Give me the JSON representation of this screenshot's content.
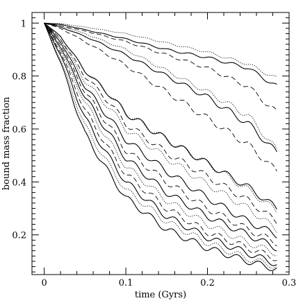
{
  "chart_data": {
    "type": "line",
    "title": "",
    "xlabel": "time (Gyrs)",
    "ylabel": "bound mass fraction",
    "xlim": [
      -0.015,
      0.3
    ],
    "ylim": [
      0.05,
      1.04
    ],
    "xticks": [
      0,
      0.1,
      0.2,
      0.3
    ],
    "xtick_labels": [
      "0",
      "0.1",
      "0.2",
      "0.3"
    ],
    "yticks": [
      0.2,
      0.4,
      0.6,
      0.8,
      1
    ],
    "ytick_labels": [
      "0.2",
      "0.4",
      "0.6",
      "0.8",
      "1"
    ],
    "grid": false,
    "legend": "none",
    "series": [
      {
        "style": "solid",
        "x": [
          0,
          0.02,
          0.05,
          0.1,
          0.15,
          0.2,
          0.25,
          0.285
        ],
        "y": [
          1,
          0.995,
          0.975,
          0.94,
          0.9,
          0.87,
          0.83,
          0.76
        ]
      },
      {
        "style": "dotted",
        "x": [
          0,
          0.02,
          0.05,
          0.1,
          0.15,
          0.2,
          0.25,
          0.285
        ],
        "y": [
          1,
          0.998,
          0.985,
          0.96,
          0.925,
          0.89,
          0.845,
          0.79
        ]
      },
      {
        "style": "dashed",
        "x": [
          0,
          0.02,
          0.05,
          0.1,
          0.15,
          0.2,
          0.25,
          0.285
        ],
        "y": [
          1,
          0.99,
          0.97,
          0.93,
          0.88,
          0.83,
          0.76,
          0.66
        ]
      },
      {
        "style": "dotted",
        "x": [
          0,
          0.02,
          0.05,
          0.1,
          0.15,
          0.2,
          0.25,
          0.285
        ],
        "y": [
          1,
          0.99,
          0.96,
          0.9,
          0.82,
          0.74,
          0.65,
          0.52
        ]
      },
      {
        "style": "solid",
        "x": [
          0,
          0.02,
          0.05,
          0.1,
          0.15,
          0.2,
          0.25,
          0.285
        ],
        "y": [
          1,
          0.985,
          0.95,
          0.88,
          0.8,
          0.72,
          0.62,
          0.51
        ]
      },
      {
        "style": "dashed",
        "x": [
          0,
          0.02,
          0.05,
          0.1,
          0.15,
          0.2,
          0.25,
          0.285
        ],
        "y": [
          1,
          0.98,
          0.93,
          0.84,
          0.74,
          0.64,
          0.54,
          0.44
        ]
      },
      {
        "style": "solid",
        "x": [
          0,
          0.02,
          0.05,
          0.08,
          0.1,
          0.15,
          0.2,
          0.25,
          0.285
        ],
        "y": [
          1,
          0.95,
          0.82,
          0.73,
          0.66,
          0.56,
          0.47,
          0.38,
          0.3
        ]
      },
      {
        "style": "dotted",
        "x": [
          0,
          0.02,
          0.05,
          0.08,
          0.1,
          0.15,
          0.2,
          0.25,
          0.285
        ],
        "y": [
          1,
          0.95,
          0.82,
          0.73,
          0.66,
          0.56,
          0.47,
          0.37,
          0.29
        ]
      },
      {
        "style": "dashed",
        "x": [
          0,
          0.02,
          0.05,
          0.08,
          0.1,
          0.15,
          0.2,
          0.25,
          0.285
        ],
        "y": [
          1,
          0.94,
          0.8,
          0.7,
          0.62,
          0.51,
          0.42,
          0.33,
          0.25
        ]
      },
      {
        "style": "dotted",
        "x": [
          0,
          0.02,
          0.05,
          0.08,
          0.1,
          0.15,
          0.2,
          0.25,
          0.285
        ],
        "y": [
          1,
          0.94,
          0.78,
          0.68,
          0.6,
          0.49,
          0.39,
          0.3,
          0.22
        ]
      },
      {
        "style": "solid",
        "x": [
          0,
          0.02,
          0.05,
          0.08,
          0.1,
          0.15,
          0.2,
          0.25,
          0.285
        ],
        "y": [
          1,
          0.93,
          0.76,
          0.64,
          0.56,
          0.44,
          0.34,
          0.25,
          0.2
        ]
      },
      {
        "style": "dashed",
        "x": [
          0,
          0.02,
          0.05,
          0.08,
          0.1,
          0.15,
          0.2,
          0.25,
          0.285
        ],
        "y": [
          1,
          0.92,
          0.74,
          0.61,
          0.52,
          0.4,
          0.3,
          0.22,
          0.17
        ]
      },
      {
        "style": "solid",
        "x": [
          0,
          0.02,
          0.05,
          0.08,
          0.1,
          0.15,
          0.2,
          0.25,
          0.285
        ],
        "y": [
          1,
          0.91,
          0.72,
          0.58,
          0.49,
          0.36,
          0.27,
          0.2,
          0.15
        ]
      },
      {
        "style": "dotted",
        "x": [
          0,
          0.02,
          0.05,
          0.08,
          0.1,
          0.15,
          0.2,
          0.25,
          0.285
        ],
        "y": [
          1,
          0.9,
          0.7,
          0.55,
          0.46,
          0.33,
          0.24,
          0.17,
          0.13
        ]
      },
      {
        "style": "dashed",
        "x": [
          0,
          0.02,
          0.05,
          0.08,
          0.1,
          0.15,
          0.2,
          0.25,
          0.285
        ],
        "y": [
          1,
          0.89,
          0.67,
          0.52,
          0.43,
          0.3,
          0.21,
          0.15,
          0.11
        ]
      },
      {
        "style": "solid",
        "x": [
          0,
          0.02,
          0.05,
          0.08,
          0.1,
          0.15,
          0.2,
          0.25,
          0.285
        ],
        "y": [
          1,
          0.88,
          0.64,
          0.49,
          0.4,
          0.27,
          0.19,
          0.13,
          0.09
        ]
      },
      {
        "style": "dotted",
        "x": [
          0,
          0.02,
          0.05,
          0.08,
          0.1,
          0.15,
          0.2,
          0.25,
          0.285
        ],
        "y": [
          1,
          0.86,
          0.61,
          0.46,
          0.37,
          0.25,
          0.17,
          0.11,
          0.08
        ]
      },
      {
        "style": "solid",
        "x": [
          0,
          0.02,
          0.05,
          0.08,
          0.1,
          0.15,
          0.2,
          0.25,
          0.285
        ],
        "y": [
          1,
          0.85,
          0.58,
          0.43,
          0.34,
          0.22,
          0.15,
          0.1,
          0.07
        ]
      }
    ]
  }
}
